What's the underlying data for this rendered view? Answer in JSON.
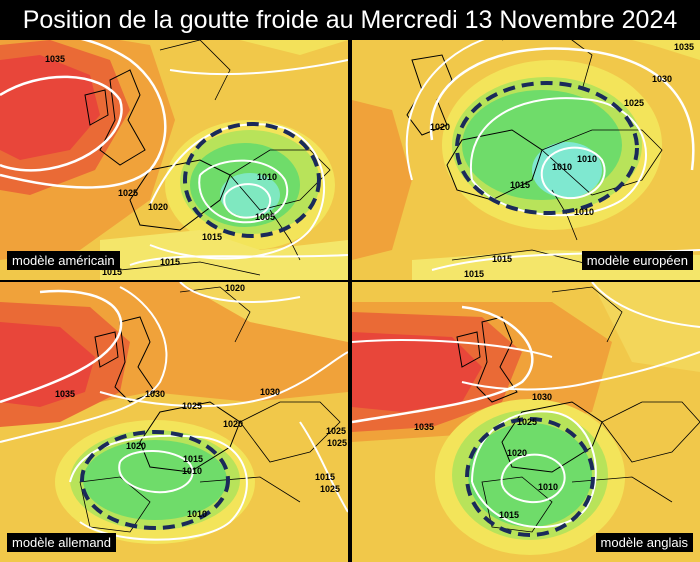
{
  "title": "Position de la goutte froide au Mercredi 13 Novembre 2024",
  "panels": [
    {
      "label": "modèle américain",
      "isobars": [
        "1035",
        "1025",
        "1020",
        "1010",
        "1005",
        "1015",
        "1015",
        "1015"
      ]
    },
    {
      "label": "modèle européen",
      "isobars": [
        "1035",
        "1030",
        "1025",
        "1020",
        "1010",
        "1010",
        "1015",
        "1010",
        "1015",
        "1015"
      ]
    },
    {
      "label": "modèle allemand",
      "isobars": [
        "1020",
        "1035",
        "1030",
        "1025",
        "1030",
        "1020",
        "1020",
        "1015",
        "1010",
        "1010",
        "1025",
        "1015",
        "1025",
        "1025"
      ]
    },
    {
      "label": "modèle anglais",
      "isobars": [
        "1035",
        "1030",
        "1025",
        "1020",
        "1010",
        "1015"
      ]
    }
  ]
}
